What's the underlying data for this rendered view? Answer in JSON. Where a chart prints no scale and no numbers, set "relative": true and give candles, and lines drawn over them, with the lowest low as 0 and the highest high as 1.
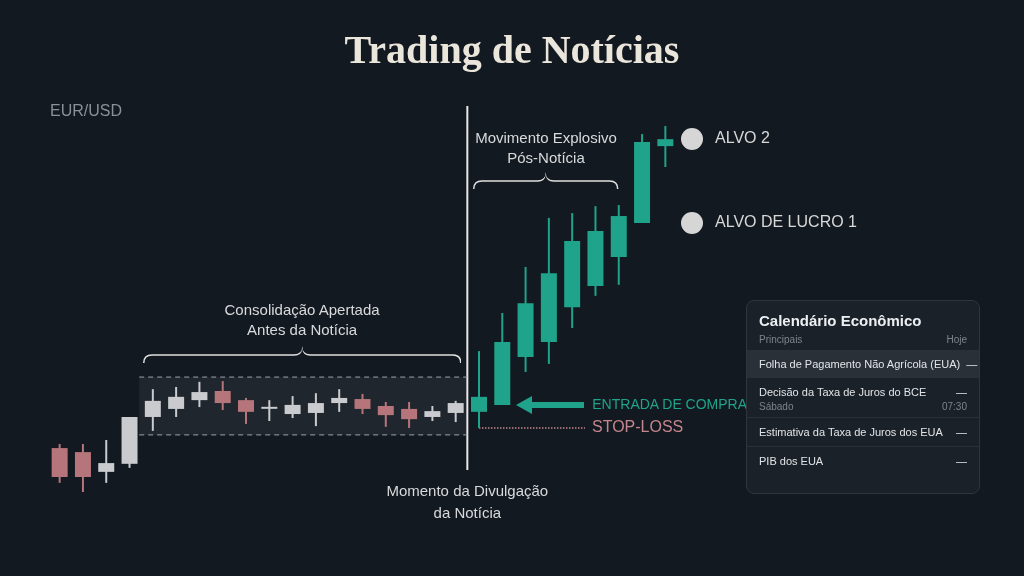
{
  "chart_data": [
    {
      "type": "candlestick",
      "title": "Trading de Notícias",
      "subtitle": "EUR/USD",
      "relative": true,
      "categories": [
        null,
        null,
        null,
        null,
        null,
        null,
        null,
        null,
        null,
        null,
        null,
        null,
        null,
        null,
        null,
        null,
        null,
        null,
        null,
        null,
        null,
        null,
        null,
        null,
        null,
        null,
        null
      ],
      "ohlc": [
        [
          0.12,
          0.131,
          0.025,
          0.041
        ],
        [
          0.109,
          0.131,
          0,
          0.041
        ],
        [
          0.055,
          0.142,
          0.025,
          0.079
        ],
        [
          0.077,
          0.205,
          0.066,
          0.205
        ],
        [
          0.205,
          0.281,
          0.167,
          0.249
        ],
        [
          0.227,
          0.287,
          0.205,
          0.26
        ],
        [
          0.251,
          0.301,
          0.232,
          0.273
        ],
        [
          0.276,
          0.303,
          0.224,
          0.243
        ],
        [
          0.251,
          0.257,
          0.186,
          0.219
        ],
        [
          0.23,
          0.251,
          0.194,
          0.23
        ],
        [
          0.213,
          0.262,
          0.202,
          0.238
        ],
        [
          0.216,
          0.27,
          0.18,
          0.243
        ],
        [
          0.243,
          0.281,
          0.219,
          0.257
        ],
        [
          0.254,
          0.268,
          0.213,
          0.227
        ],
        [
          0.235,
          0.246,
          0.178,
          0.21
        ],
        [
          0.227,
          0.246,
          0.175,
          0.199
        ],
        [
          0.205,
          0.235,
          0.194,
          0.221
        ],
        [
          0.216,
          0.249,
          0.191,
          0.243
        ],
        [
          0.219,
          0.385,
          0.175,
          0.26
        ],
        [
          0.238,
          0.489,
          0.238,
          0.41
        ],
        [
          0.369,
          0.615,
          0.328,
          0.516
        ],
        [
          0.41,
          0.749,
          0.35,
          0.598
        ],
        [
          0.505,
          0.762,
          0.448,
          0.686
        ],
        [
          0.563,
          0.781,
          0.536,
          0.713
        ],
        [
          0.642,
          0.784,
          0.566,
          0.754
        ],
        [
          0.735,
          0.978,
          0.735,
          0.956
        ],
        [
          0.945,
          1,
          0.888,
          0.964
        ]
      ],
      "colors": [
        "#b5757b",
        "#b5757b",
        "#c9cbce",
        "#c9cbce",
        "#c9cbce",
        "#c9cbce",
        "#c9cbce",
        "#b5757b",
        "#b5757b",
        "#c9cbce",
        "#c9cbce",
        "#c9cbce",
        "#c9cbce",
        "#b5757b",
        "#b5757b",
        "#b5757b",
        "#c9cbce",
        "#c9cbce",
        "#1fa38a",
        "#1fa38a",
        "#1fa38a",
        "#1fa38a",
        "#1fa38a",
        "#1fa38a",
        "#1fa38a",
        "#1fa38a",
        "#1fa38a"
      ],
      "ref_lines": [
        {
          "axis": "y",
          "value": 0.175,
          "label": "STOP-LOSS",
          "color": "#c4868c",
          "line_style": "dotted"
        },
        {
          "axis": "y",
          "value": 0.314,
          "color": "#9ea3a8",
          "line_style": "dashed"
        },
        {
          "axis": "y",
          "value": 0.156,
          "color": "#9ea3a8",
          "line_style": "dashed"
        }
      ],
      "bands": [
        {
          "axis": "y",
          "from": 0.156,
          "to": 0.314,
          "label": "Consolidação Apertada Antes da Notícia"
        }
      ],
      "annotations": [
        "Movimento Explosivo Pós-Notícia",
        "Momento da Divulgação da Notícia",
        "ENTRADA DE COMPRA",
        "ALVO DE LUCRO 1",
        "ALVO 2"
      ]
    },
    {
      "type": "other",
      "title": "Calendário Econômico",
      "annotations": [
        "Principais",
        "Hoje",
        "Folha de Pagamento Não Agrícola (EUA)",
        "—",
        "Decisão da Taxa de Juros do BCE",
        "—",
        "Sábado",
        "07:30",
        "Estimativa da Taxa de Juros dos EUA",
        "—",
        "PIB dos EUA",
        "—"
      ]
    }
  ]
}
